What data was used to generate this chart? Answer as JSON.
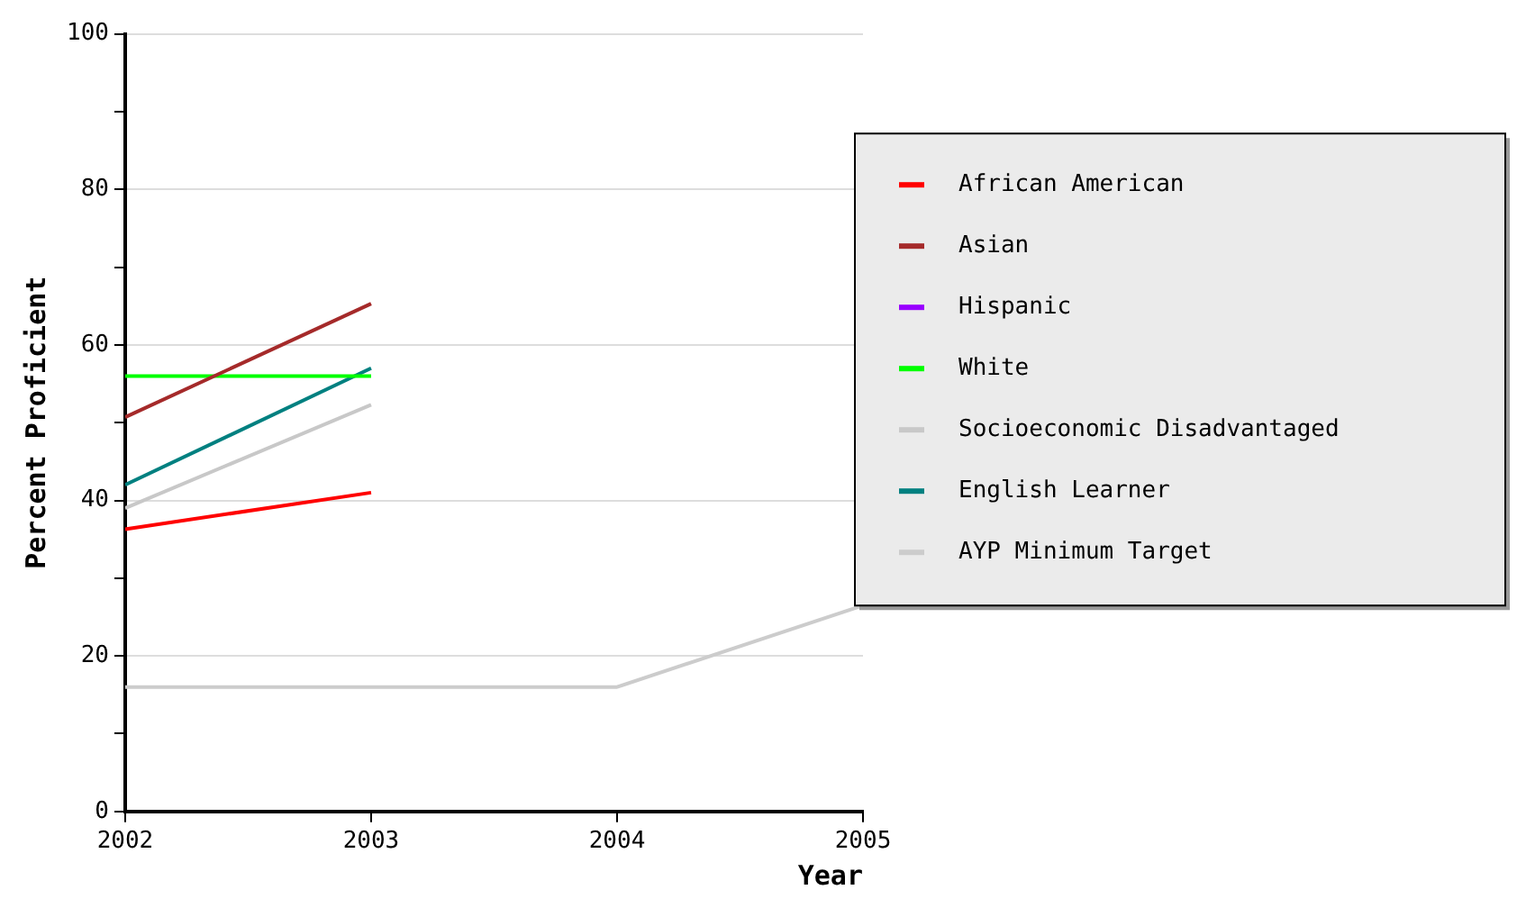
{
  "chart_data": {
    "type": "line",
    "xlabel": "Year",
    "ylabel": "Percent Proficient",
    "x": [
      2002,
      2003,
      2004,
      2005
    ],
    "series": [
      {
        "name": "African American",
        "color": "#ff0000",
        "values": [
          36.3,
          41,
          null,
          null
        ]
      },
      {
        "name": "Asian",
        "color": "#a52a2a",
        "values": [
          50.7,
          65.3,
          null,
          null
        ]
      },
      {
        "name": "Hispanic",
        "color": "#9900ff",
        "values": [
          null,
          null,
          null,
          null
        ]
      },
      {
        "name": "White",
        "color": "#00ff00",
        "values": [
          56,
          56,
          null,
          null
        ]
      },
      {
        "name": "Socioeconomic Disadvantaged",
        "color": "#c8c8c8",
        "values": [
          39,
          52.3,
          null,
          null
        ]
      },
      {
        "name": "English Learner",
        "color": "#008080",
        "values": [
          42,
          57,
          null,
          null
        ]
      },
      {
        "name": "AYP Minimum Target",
        "color": "#cccccc",
        "values": [
          16,
          16,
          16,
          26.5
        ]
      }
    ],
    "xlim": [
      2002,
      2005
    ],
    "xticks": [
      2002,
      2003,
      2004,
      2005
    ],
    "ylim": [
      0,
      100
    ],
    "yticks": [
      0,
      {
        "value": 10,
        "label": null
      },
      20,
      {
        "value": 30,
        "label": null
      },
      40,
      {
        "value": 50,
        "label": null
      },
      60,
      {
        "value": 70,
        "label": null
      },
      80,
      {
        "value": 90,
        "label": null
      },
      100
    ],
    "grid": "y",
    "legend": "right",
    "marker": "none",
    "line_style": "solid"
  }
}
